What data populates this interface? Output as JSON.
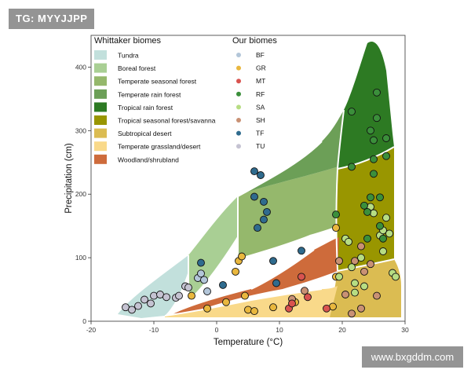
{
  "watermarks": {
    "top_left": "TG: MYYJJPP",
    "bottom_right": "www.bxgddm.com"
  },
  "chart_data": {
    "type": "scatter",
    "xlabel": "Temperature (°C)",
    "ylabel": "Precipitation (cm)",
    "xlim": [
      -20,
      30
    ],
    "ylim": [
      0,
      450
    ],
    "xticks": [
      -20,
      -10,
      0,
      10,
      20,
      30
    ],
    "yticks": [
      0,
      100,
      200,
      300,
      400
    ],
    "legend_left_title": "Whittaker biomes",
    "legend_right_title": "Our biomes",
    "legend_placement": "top-left inside plot",
    "biomes": [
      {
        "name": "Tundra",
        "color": "#c2e0dc"
      },
      {
        "name": "Boreal forest",
        "color": "#a9cf94"
      },
      {
        "name": "Temperate seasonal forest",
        "color": "#95b86c"
      },
      {
        "name": "Temperate rain forest",
        "color": "#6c9f57"
      },
      {
        "name": "Tropical rain forest",
        "color": "#2d7a23"
      },
      {
        "name": "Tropical seasonal forest/savanna",
        "color": "#999600"
      },
      {
        "name": "Subtropical desert",
        "color": "#dbbc52"
      },
      {
        "name": "Temperate grassland/desert",
        "color": "#f9d98a"
      },
      {
        "name": "Woodland/shrubland",
        "color": "#ce6b3b"
      }
    ],
    "groups": [
      {
        "name": "BF",
        "color": "#b3c6d9"
      },
      {
        "name": "GR",
        "color": "#e9b73e"
      },
      {
        "name": "MT",
        "color": "#d9534f"
      },
      {
        "name": "RF",
        "color": "#3b8f3b"
      },
      {
        "name": "SA",
        "color": "#b7dd83"
      },
      {
        "name": "SH",
        "color": "#c99174"
      },
      {
        "name": "TF",
        "color": "#2f6b8e"
      },
      {
        "name": "TU",
        "color": "#c5c3d2"
      }
    ],
    "points": [
      {
        "group": "TU",
        "x": -14.5,
        "y": 22
      },
      {
        "group": "TU",
        "x": -13.5,
        "y": 18
      },
      {
        "group": "TU",
        "x": -12.5,
        "y": 24
      },
      {
        "group": "TU",
        "x": -11.5,
        "y": 34
      },
      {
        "group": "TU",
        "x": -10.5,
        "y": 28
      },
      {
        "group": "TU",
        "x": -10,
        "y": 40
      },
      {
        "group": "TU",
        "x": -9,
        "y": 42
      },
      {
        "group": "TU",
        "x": -8,
        "y": 38
      },
      {
        "group": "TU",
        "x": -6.5,
        "y": 37
      },
      {
        "group": "TU",
        "x": -6,
        "y": 40
      },
      {
        "group": "TU",
        "x": -5,
        "y": 55
      },
      {
        "group": "TU",
        "x": -4.5,
        "y": 53
      },
      {
        "group": "BF",
        "x": -3,
        "y": 68
      },
      {
        "group": "BF",
        "x": -2.5,
        "y": 75
      },
      {
        "group": "BF",
        "x": -2,
        "y": 65
      },
      {
        "group": "BF",
        "x": -1.5,
        "y": 47
      },
      {
        "group": "TF",
        "x": -2.5,
        "y": 92
      },
      {
        "group": "TF",
        "x": 1,
        "y": 57
      },
      {
        "group": "TF",
        "x": 6,
        "y": 236
      },
      {
        "group": "TF",
        "x": 7,
        "y": 230
      },
      {
        "group": "TF",
        "x": 6,
        "y": 196
      },
      {
        "group": "TF",
        "x": 7.5,
        "y": 188
      },
      {
        "group": "TF",
        "x": 8,
        "y": 172
      },
      {
        "group": "TF",
        "x": 7.5,
        "y": 160
      },
      {
        "group": "TF",
        "x": 6.5,
        "y": 147
      },
      {
        "group": "TF",
        "x": 9,
        "y": 95
      },
      {
        "group": "TF",
        "x": 9.5,
        "y": 60
      },
      {
        "group": "TF",
        "x": 13.5,
        "y": 111
      },
      {
        "group": "GR",
        "x": -4,
        "y": 40
      },
      {
        "group": "GR",
        "x": -1.5,
        "y": 20
      },
      {
        "group": "GR",
        "x": 1.5,
        "y": 30
      },
      {
        "group": "GR",
        "x": 3,
        "y": 78
      },
      {
        "group": "GR",
        "x": 3.5,
        "y": 95
      },
      {
        "group": "GR",
        "x": 4,
        "y": 102
      },
      {
        "group": "GR",
        "x": 4.5,
        "y": 40
      },
      {
        "group": "GR",
        "x": 5,
        "y": 18
      },
      {
        "group": "GR",
        "x": 6,
        "y": 16
      },
      {
        "group": "GR",
        "x": 9,
        "y": 22
      },
      {
        "group": "GR",
        "x": 12.5,
        "y": 30
      },
      {
        "group": "GR",
        "x": 18.5,
        "y": 23
      },
      {
        "group": "GR",
        "x": 19,
        "y": 147
      },
      {
        "group": "GR",
        "x": 19,
        "y": 70
      },
      {
        "group": "SH",
        "x": 12,
        "y": 35
      },
      {
        "group": "SH",
        "x": 14,
        "y": 48
      },
      {
        "group": "SH",
        "x": 19.5,
        "y": 95
      },
      {
        "group": "SH",
        "x": 20.5,
        "y": 42
      },
      {
        "group": "SH",
        "x": 21.5,
        "y": 12
      },
      {
        "group": "SH",
        "x": 22,
        "y": 95
      },
      {
        "group": "SH",
        "x": 23,
        "y": 118
      },
      {
        "group": "SH",
        "x": 23,
        "y": 20
      },
      {
        "group": "SH",
        "x": 23.5,
        "y": 78
      },
      {
        "group": "SH",
        "x": 24.5,
        "y": 90
      },
      {
        "group": "SH",
        "x": 25.5,
        "y": 40
      },
      {
        "group": "MT",
        "x": 11.5,
        "y": 20
      },
      {
        "group": "MT",
        "x": 12,
        "y": 28
      },
      {
        "group": "MT",
        "x": 13.5,
        "y": 70
      },
      {
        "group": "MT",
        "x": 14.5,
        "y": 38
      },
      {
        "group": "MT",
        "x": 17.5,
        "y": 20
      },
      {
        "group": "SA",
        "x": 19.5,
        "y": 70
      },
      {
        "group": "SA",
        "x": 20.5,
        "y": 130
      },
      {
        "group": "SA",
        "x": 21,
        "y": 125
      },
      {
        "group": "SA",
        "x": 21.5,
        "y": 85
      },
      {
        "group": "SA",
        "x": 22,
        "y": 60
      },
      {
        "group": "SA",
        "x": 22,
        "y": 45
      },
      {
        "group": "SA",
        "x": 23,
        "y": 100
      },
      {
        "group": "SA",
        "x": 23.5,
        "y": 55
      },
      {
        "group": "SA",
        "x": 24.5,
        "y": 180
      },
      {
        "group": "SA",
        "x": 25,
        "y": 170
      },
      {
        "group": "SA",
        "x": 26,
        "y": 135
      },
      {
        "group": "SA",
        "x": 26.5,
        "y": 143
      },
      {
        "group": "SA",
        "x": 27,
        "y": 163
      },
      {
        "group": "SA",
        "x": 27.5,
        "y": 138
      },
      {
        "group": "SA",
        "x": 26.5,
        "y": 110
      },
      {
        "group": "SA",
        "x": 28,
        "y": 76
      },
      {
        "group": "SA",
        "x": 28.5,
        "y": 70
      },
      {
        "group": "RF",
        "x": 19,
        "y": 168
      },
      {
        "group": "RF",
        "x": 21.5,
        "y": 330
      },
      {
        "group": "RF",
        "x": 21.5,
        "y": 243
      },
      {
        "group": "RF",
        "x": 23.5,
        "y": 182
      },
      {
        "group": "RF",
        "x": 24,
        "y": 172
      },
      {
        "group": "RF",
        "x": 24.5,
        "y": 195
      },
      {
        "group": "RF",
        "x": 24.5,
        "y": 300
      },
      {
        "group": "RF",
        "x": 25,
        "y": 285
      },
      {
        "group": "RF",
        "x": 25,
        "y": 255
      },
      {
        "group": "RF",
        "x": 25,
        "y": 232
      },
      {
        "group": "RF",
        "x": 25.5,
        "y": 360
      },
      {
        "group": "RF",
        "x": 25.5,
        "y": 320
      },
      {
        "group": "RF",
        "x": 26,
        "y": 195
      },
      {
        "group": "RF",
        "x": 26,
        "y": 150
      },
      {
        "group": "RF",
        "x": 27,
        "y": 288
      },
      {
        "group": "RF",
        "x": 27,
        "y": 260
      },
      {
        "group": "RF",
        "x": 24,
        "y": 130
      },
      {
        "group": "RF",
        "x": 26.5,
        "y": 130
      }
    ]
  }
}
